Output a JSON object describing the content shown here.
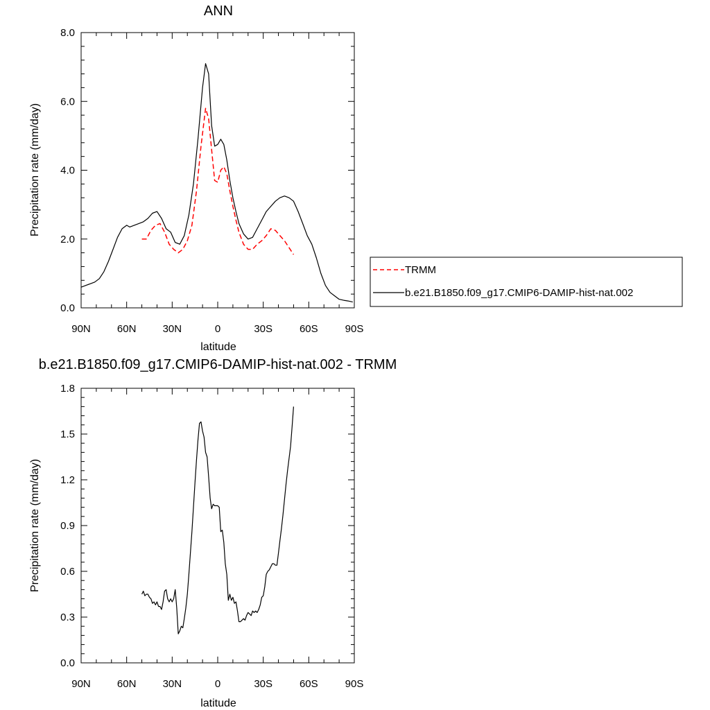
{
  "chart_data": [
    {
      "type": "line",
      "title": "ANN",
      "xlabel": "latitude",
      "ylabel": "Precipitation rate (mm/day)",
      "xlim": [
        90,
        -90
      ],
      "ylim": [
        0,
        8
      ],
      "x_ticks": [
        90,
        60,
        30,
        0,
        -30,
        -60,
        -90
      ],
      "x_tick_labels": [
        "90N",
        "60N",
        "30N",
        "0",
        "30S",
        "60S",
        "90S"
      ],
      "y_ticks": [
        0,
        2,
        4,
        6,
        8
      ],
      "y_tick_labels": [
        "0.0",
        "2.0",
        "4.0",
        "6.0",
        "8.0"
      ],
      "legend_position": "right",
      "series": [
        {
          "name": "TRMM",
          "color": "#ff0000",
          "dash": true,
          "x": [
            50,
            47,
            44,
            41,
            38,
            35,
            32,
            29,
            26,
            23,
            20,
            17,
            14,
            11,
            8,
            6,
            4,
            2,
            0,
            -2,
            -4,
            -6,
            -8,
            -10,
            -12,
            -14,
            -17,
            -20,
            -23,
            -26,
            -29,
            -32,
            -35,
            -38,
            -41,
            -44,
            -47,
            -50
          ],
          "y": [
            2.0,
            2.0,
            2.25,
            2.4,
            2.45,
            2.2,
            1.85,
            1.7,
            1.6,
            1.7,
            1.95,
            2.4,
            3.4,
            4.7,
            5.8,
            5.5,
            4.6,
            3.7,
            3.65,
            4.0,
            4.1,
            3.9,
            3.4,
            2.95,
            2.55,
            2.2,
            1.85,
            1.7,
            1.7,
            1.85,
            1.95,
            2.1,
            2.3,
            2.25,
            2.1,
            1.95,
            1.75,
            1.55
          ]
        },
        {
          "name": "b.e21.B1850.f09_g17.CMIP6-DAMIP-hist-nat.002",
          "color": "#000000",
          "dash": false,
          "x": [
            90,
            87,
            84,
            81,
            78,
            75,
            72,
            69,
            66,
            63,
            60,
            58,
            55,
            52,
            49,
            46,
            43,
            40,
            37,
            34,
            31,
            28,
            25,
            22,
            19,
            16,
            13,
            10,
            8,
            6,
            4,
            2,
            0,
            -2,
            -4,
            -6,
            -8,
            -10,
            -12,
            -14,
            -17,
            -20,
            -23,
            -26,
            -29,
            -32,
            -35,
            -38,
            -41,
            -44,
            -47,
            -50,
            -53,
            -56,
            -59,
            -62,
            -65,
            -68,
            -71,
            -74,
            -77,
            -80,
            -83,
            -86,
            -89
          ],
          "y": [
            0.6,
            0.65,
            0.7,
            0.75,
            0.85,
            1.05,
            1.35,
            1.7,
            2.05,
            2.3,
            2.4,
            2.35,
            2.4,
            2.45,
            2.5,
            2.6,
            2.75,
            2.8,
            2.6,
            2.3,
            2.2,
            1.9,
            1.85,
            2.1,
            2.7,
            3.6,
            4.9,
            6.4,
            7.1,
            6.8,
            5.3,
            4.7,
            4.75,
            4.9,
            4.75,
            4.3,
            3.7,
            3.2,
            2.8,
            2.45,
            2.15,
            2.0,
            2.05,
            2.3,
            2.55,
            2.8,
            2.95,
            3.1,
            3.2,
            3.25,
            3.2,
            3.1,
            2.8,
            2.45,
            2.1,
            1.85,
            1.45,
            1.0,
            0.65,
            0.45,
            0.35,
            0.25,
            0.22,
            0.2,
            0.17
          ]
        }
      ]
    },
    {
      "type": "line",
      "title": "b.e21.B1850.f09_g17.CMIP6-DAMIP-hist-nat.002 - TRMM",
      "xlabel": "latitude",
      "ylabel": "Precipitation rate (mm/day)",
      "xlim": [
        90,
        -90
      ],
      "ylim": [
        0,
        1.8
      ],
      "x_ticks": [
        90,
        60,
        30,
        0,
        -30,
        -60,
        -90
      ],
      "x_tick_labels": [
        "90N",
        "60N",
        "30N",
        "0",
        "30S",
        "60S",
        "90S"
      ],
      "y_ticks": [
        0,
        0.3,
        0.6,
        0.9,
        1.2,
        1.5,
        1.8
      ],
      "y_tick_labels": [
        "0.0",
        "0.3",
        "0.6",
        "0.9",
        "1.2",
        "1.5",
        "1.8"
      ],
      "series": [
        {
          "color": "#000000",
          "dash": false,
          "x": [
            50,
            49,
            48,
            47,
            46,
            45,
            44,
            43,
            42,
            41,
            40,
            39,
            38,
            37,
            36,
            35,
            34,
            33,
            32,
            31,
            30,
            29,
            28,
            27,
            26,
            25,
            24,
            23,
            22,
            21,
            20,
            19,
            18,
            17,
            16,
            15,
            14,
            13,
            12,
            11,
            10,
            9,
            8,
            7,
            6,
            5,
            4,
            3,
            2,
            1,
            0,
            -1,
            -2,
            -3,
            -4,
            -5,
            -6,
            -7,
            -8,
            -9,
            -10,
            -11,
            -12,
            -13,
            -14,
            -15,
            -16,
            -17,
            -18,
            -19,
            -20,
            -21,
            -22,
            -23,
            -24,
            -25,
            -26,
            -27,
            -28,
            -29,
            -30,
            -31,
            -32,
            -33,
            -34,
            -35,
            -36,
            -37,
            -38,
            -39,
            -40,
            -41,
            -42,
            -43,
            -44,
            -45,
            -46,
            -47,
            -48,
            -49,
            -50
          ],
          "y": [
            0.45,
            0.47,
            0.44,
            0.45,
            0.45,
            0.43,
            0.42,
            0.39,
            0.4,
            0.38,
            0.4,
            0.37,
            0.37,
            0.35,
            0.4,
            0.47,
            0.48,
            0.42,
            0.4,
            0.42,
            0.4,
            0.42,
            0.48,
            0.36,
            0.19,
            0.21,
            0.24,
            0.23,
            0.29,
            0.36,
            0.45,
            0.58,
            0.72,
            0.86,
            1.02,
            1.18,
            1.33,
            1.46,
            1.57,
            1.58,
            1.52,
            1.48,
            1.38,
            1.35,
            1.22,
            1.08,
            1.01,
            1.04,
            1.03,
            1.03,
            1.03,
            1.02,
            0.86,
            0.87,
            0.79,
            0.65,
            0.58,
            0.41,
            0.45,
            0.41,
            0.43,
            0.39,
            0.4,
            0.34,
            0.27,
            0.27,
            0.28,
            0.29,
            0.28,
            0.31,
            0.33,
            0.32,
            0.31,
            0.34,
            0.33,
            0.34,
            0.33,
            0.35,
            0.38,
            0.43,
            0.44,
            0.5,
            0.58,
            0.6,
            0.61,
            0.63,
            0.65,
            0.65,
            0.64,
            0.64,
            0.72,
            0.8,
            0.88,
            0.97,
            1.07,
            1.17,
            1.26,
            1.34,
            1.42,
            1.55,
            1.68
          ]
        }
      ]
    }
  ]
}
